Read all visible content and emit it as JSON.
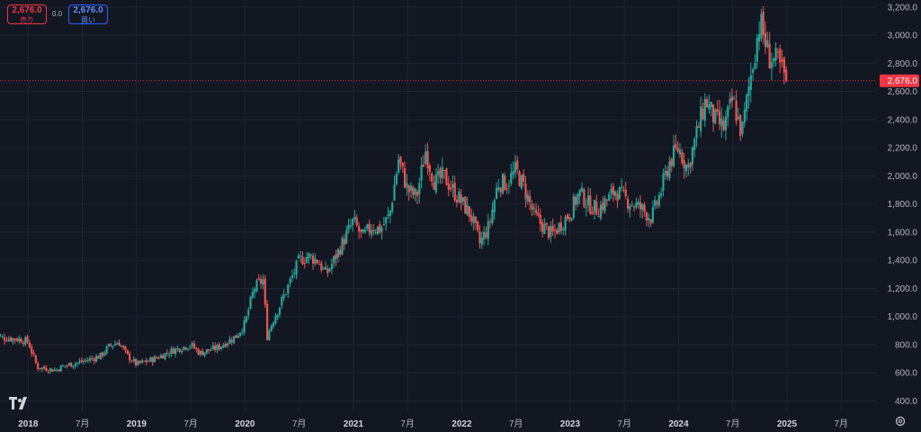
{
  "order_panel": {
    "sell_price": "2,676.0",
    "sell_label": "売り",
    "spread": "0.0",
    "buy_price": "2,676.0",
    "buy_label": "買い"
  },
  "colors": {
    "background": "#131722",
    "up": "#26a69a",
    "down": "#ef5350",
    "price_line": "#f23645",
    "grid": "#1f2433"
  },
  "icons": {
    "logo": "tradingview-logo-icon",
    "settings": "gear-icon"
  },
  "chart_data": {
    "type": "candlestick",
    "title": "",
    "y_axis": {
      "ticks": [
        "400.0",
        "600.0",
        "800.0",
        "1,000.0",
        "1,200.0",
        "1,400.0",
        "1,600.0",
        "1,800.0",
        "2,000.0",
        "2,200.0",
        "2,400.0",
        "2,600.0",
        "2,800.0",
        "3,000.0",
        "3,200.0"
      ],
      "ylim": [
        320,
        3250
      ],
      "position": "right"
    },
    "x_axis": {
      "ticks": [
        "2018",
        "7月",
        "2019",
        "7月",
        "2020",
        "7月",
        "2021",
        "7月",
        "2022",
        "7月",
        "2023",
        "7月",
        "2024",
        "7月",
        "2025",
        "7月"
      ],
      "tick_dates": [
        2018.0,
        2018.5,
        2019.0,
        2019.5,
        2020.0,
        2020.5,
        2021.0,
        2021.5,
        2022.0,
        2022.5,
        2023.0,
        2023.5,
        2024.0,
        2024.5,
        2025.0,
        2025.5
      ],
      "xlim": [
        2017.74,
        2025.83
      ]
    },
    "last_price": 2676.0,
    "last_price_label": "2,676.0",
    "price_path": [
      [
        "2017-09",
        900
      ],
      [
        "2017-10",
        850
      ],
      [
        "2017-12",
        840
      ],
      [
        "2018-01",
        820
      ],
      [
        "2018-02",
        640
      ],
      [
        "2018-04",
        620
      ],
      [
        "2018-05",
        650
      ],
      [
        "2018-07",
        680
      ],
      [
        "2018-09",
        720
      ],
      [
        "2018-10",
        790
      ],
      [
        "2018-11",
        820
      ],
      [
        "2018-12",
        720
      ],
      [
        "2019-01",
        660
      ],
      [
        "2019-03",
        700
      ],
      [
        "2019-05",
        760
      ],
      [
        "2019-07",
        800
      ],
      [
        "2019-08",
        740
      ],
      [
        "2019-10",
        780
      ],
      [
        "2019-12",
        860
      ],
      [
        "2020-01",
        950
      ],
      [
        "2020-02",
        1200
      ],
      [
        "2020-03",
        1260
      ],
      [
        "2020-03-15",
        860
      ],
      [
        "2020-04",
        960
      ],
      [
        "2020-05",
        1100
      ],
      [
        "2020-07",
        1400
      ],
      [
        "2020-08",
        1430
      ],
      [
        "2020-09",
        1400
      ],
      [
        "2020-10",
        1300
      ],
      [
        "2020-11",
        1420
      ],
      [
        "2021-01",
        1680
      ],
      [
        "2021-02",
        1560
      ],
      [
        "2021-03",
        1640
      ],
      [
        "2021-04",
        1620
      ],
      [
        "2021-05",
        1720
      ],
      [
        "2021-06",
        2120
      ],
      [
        "2021-07",
        1900
      ],
      [
        "2021-08",
        1850
      ],
      [
        "2021-09",
        2180
      ],
      [
        "2021-10",
        1950
      ],
      [
        "2021-11",
        2000
      ],
      [
        "2021-12",
        1900
      ],
      [
        "2022-02",
        1720
      ],
      [
        "2022-03",
        1520
      ],
      [
        "2022-04",
        1640
      ],
      [
        "2022-05",
        1950
      ],
      [
        "2022-06",
        1950
      ],
      [
        "2022-07",
        2040
      ],
      [
        "2022-08",
        1900
      ],
      [
        "2022-09",
        1720
      ],
      [
        "2022-10",
        1640
      ],
      [
        "2022-11",
        1580
      ],
      [
        "2022-12",
        1660
      ],
      [
        "2023-01",
        1740
      ],
      [
        "2023-02",
        1880
      ],
      [
        "2023-03",
        1800
      ],
      [
        "2023-04",
        1760
      ],
      [
        "2023-05",
        1820
      ],
      [
        "2023-06",
        1900
      ],
      [
        "2023-07",
        1840
      ],
      [
        "2023-08",
        1800
      ],
      [
        "2023-09",
        1760
      ],
      [
        "2023-10",
        1700
      ],
      [
        "2023-11",
        1880
      ],
      [
        "2023-12",
        2100
      ],
      [
        "2024-01",
        2200
      ],
      [
        "2024-02",
        2050
      ],
      [
        "2024-03",
        2300
      ],
      [
        "2024-04",
        2540
      ],
      [
        "2024-05",
        2400
      ],
      [
        "2024-06",
        2340
      ],
      [
        "2024-07",
        2540
      ],
      [
        "2024-08",
        2300
      ],
      [
        "2024-09",
        2720
      ],
      [
        "2024-10",
        3100
      ],
      [
        "2024-11",
        2850
      ],
      [
        "2024-12",
        2800
      ],
      [
        "2025-01",
        2676
      ]
    ]
  }
}
